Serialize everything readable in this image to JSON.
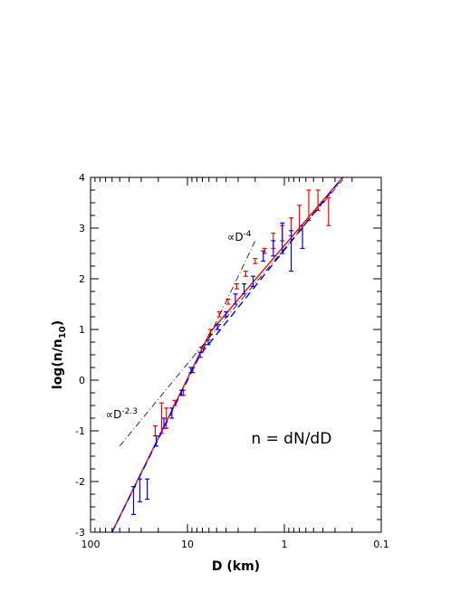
{
  "chart_data": {
    "type": "line",
    "xlabel": "D (km)",
    "ylabel": "log(n/n10)",
    "xscale": "log-reversed",
    "xlim": [
      100,
      0.1
    ],
    "ylim": [
      -3,
      4
    ],
    "xticks": [
      {
        "value": 100,
        "label": "100"
      },
      {
        "value": 10,
        "label": "10"
      },
      {
        "value": 1,
        "label": "1"
      },
      {
        "value": 0.1,
        "label": "0.1"
      }
    ],
    "yticks": [
      {
        "value": -3,
        "label": "-3"
      },
      {
        "value": -2,
        "label": "-2"
      },
      {
        "value": -1,
        "label": "-1"
      },
      {
        "value": 0,
        "label": "0"
      },
      {
        "value": 1,
        "label": "1"
      },
      {
        "value": 2,
        "label": "2"
      },
      {
        "value": 3,
        "label": "3"
      },
      {
        "value": 4,
        "label": "4"
      }
    ],
    "annotations": [
      {
        "text": "∝D",
        "sup": "-2.3",
        "D": 70,
        "y": -0.75
      },
      {
        "text": "∝D",
        "sup": "-4",
        "D": 3.9,
        "y": 2.75
      },
      {
        "text": "n = dN/dD",
        "D": 2.2,
        "y": -1.25
      }
    ],
    "series": [
      {
        "color": "#ff0000",
        "errorbars": [
          {
            "D": 21.5,
            "y": -1.0,
            "lo": -1.1,
            "hi": -0.9
          },
          {
            "D": 18.5,
            "y": -0.75,
            "lo": -1.05,
            "hi": -0.45
          },
          {
            "D": 16.5,
            "y": -0.7,
            "lo": -0.95,
            "hi": -0.55
          },
          {
            "D": 13.5,
            "y": -0.45,
            "lo": -0.5,
            "hi": -0.4
          },
          {
            "D": 11.0,
            "y": -0.25,
            "lo": -0.3,
            "hi": -0.2
          },
          {
            "D": 8.8,
            "y": 0.2,
            "lo": 0.15,
            "hi": 0.25
          },
          {
            "D": 7.2,
            "y": 0.6,
            "lo": 0.55,
            "hi": 0.65
          },
          {
            "D": 5.8,
            "y": 0.95,
            "lo": 0.9,
            "hi": 1.0
          },
          {
            "D": 4.7,
            "y": 1.3,
            "lo": 1.25,
            "hi": 1.35
          },
          {
            "D": 3.8,
            "y": 1.55,
            "lo": 1.5,
            "hi": 1.6
          },
          {
            "D": 3.1,
            "y": 1.85,
            "lo": 1.8,
            "hi": 1.9
          },
          {
            "D": 2.5,
            "y": 2.1,
            "lo": 2.05,
            "hi": 2.15
          },
          {
            "D": 2.0,
            "y": 2.35,
            "lo": 2.3,
            "hi": 2.4
          },
          {
            "D": 1.6,
            "y": 2.55,
            "lo": 2.5,
            "hi": 2.6
          },
          {
            "D": 1.3,
            "y": 2.75,
            "lo": 2.6,
            "hi": 2.9
          },
          {
            "D": 1.05,
            "y": 2.9,
            "lo": 2.75,
            "hi": 3.05
          },
          {
            "D": 0.85,
            "y": 3.0,
            "lo": 2.85,
            "hi": 3.2
          },
          {
            "D": 0.7,
            "y": 3.2,
            "lo": 2.95,
            "hi": 3.45
          },
          {
            "D": 0.56,
            "y": 3.45,
            "lo": 3.15,
            "hi": 3.75
          },
          {
            "D": 0.45,
            "y": 3.6,
            "lo": 3.35,
            "hi": 3.75
          },
          {
            "D": 0.35,
            "y": 3.35,
            "lo": 3.05,
            "hi": 3.6
          }
        ],
        "fit": [
          [
            60,
            -3.0
          ],
          [
            5.8,
            0.95
          ],
          [
            0.25,
            4.0
          ]
        ],
        "dash": ""
      },
      {
        "color": "#0000ff",
        "errorbars": [
          {
            "D": 36,
            "y": -2.3,
            "lo": -2.65,
            "hi": -2.1
          },
          {
            "D": 31,
            "y": -2.15,
            "lo": -2.4,
            "hi": -1.95
          },
          {
            "D": 26,
            "y": -2.1,
            "lo": -2.35,
            "hi": -1.95
          },
          {
            "D": 21,
            "y": -1.2,
            "lo": -1.3,
            "hi": -1.1
          },
          {
            "D": 17.5,
            "y": -0.85,
            "lo": -0.95,
            "hi": -0.75
          },
          {
            "D": 14.5,
            "y": -0.65,
            "lo": -0.75,
            "hi": -0.55
          },
          {
            "D": 11.5,
            "y": -0.25,
            "lo": -0.3,
            "hi": -0.2
          },
          {
            "D": 9.2,
            "y": 0.2,
            "lo": 0.15,
            "hi": 0.25
          },
          {
            "D": 7.4,
            "y": 0.5,
            "lo": 0.45,
            "hi": 0.55
          },
          {
            "D": 6.1,
            "y": 0.75,
            "lo": 0.7,
            "hi": 0.8
          },
          {
            "D": 4.9,
            "y": 1.05,
            "lo": 1.0,
            "hi": 1.1
          },
          {
            "D": 4.0,
            "y": 1.3,
            "lo": 1.25,
            "hi": 1.35
          },
          {
            "D": 3.2,
            "y": 1.6,
            "lo": 1.5,
            "hi": 1.7
          },
          {
            "D": 2.6,
            "y": 1.8,
            "lo": 1.7,
            "hi": 1.9
          },
          {
            "D": 2.1,
            "y": 1.95,
            "lo": 1.85,
            "hi": 2.05
          },
          {
            "D": 1.65,
            "y": 2.45,
            "lo": 2.35,
            "hi": 2.55
          },
          {
            "D": 1.3,
            "y": 2.6,
            "lo": 2.45,
            "hi": 2.75
          },
          {
            "D": 1.05,
            "y": 2.75,
            "lo": 2.5,
            "hi": 3.1
          },
          {
            "D": 0.85,
            "y": 2.5,
            "lo": 2.15,
            "hi": 2.95
          },
          {
            "D": 0.65,
            "y": 2.85,
            "lo": 2.6,
            "hi": 3.05
          }
        ],
        "fit": [
          [
            60,
            -3.0
          ],
          [
            7.4,
            0.5
          ],
          [
            0.25,
            4.0
          ]
        ],
        "dash": "8,5"
      },
      {
        "color": "#000000",
        "errorbars": [],
        "fit": [
          [
            50,
            -1.3
          ],
          [
            8,
            0.55
          ],
          [
            0.25,
            3.95
          ]
        ],
        "dash": "7,3,1,3"
      },
      {
        "color": "#000000",
        "errorbars": [],
        "fit": [
          [
            6.9,
            0.6
          ],
          [
            2.0,
            2.75
          ]
        ],
        "dash": "7,3,1,3"
      }
    ]
  }
}
